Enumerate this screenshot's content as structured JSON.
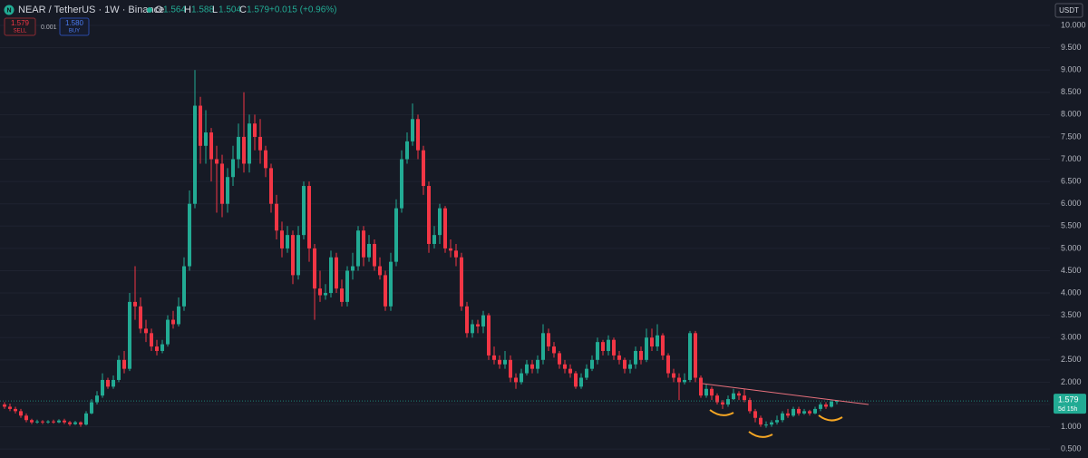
{
  "header": {
    "symbol": "NEAR / TetherUS · 1W · Binance",
    "open_label": "O",
    "high_label": "H",
    "low_label": "L",
    "close_label": "C",
    "change": "+0.015 (+0.96%)",
    "sell_price": "1.579",
    "sell": "SELL",
    "spread": "0.001",
    "buy_price": "1.580",
    "buy": "BUY",
    "currency": "USDT",
    "countdown": "5d 15h"
  },
  "chart_data": {
    "type": "candlestick",
    "up_color": "#22ab94",
    "down_color": "#f23645",
    "grid": true,
    "ylim": [
      0.3,
      10.57
    ],
    "yticks": [
      {
        "value": 0.5,
        "label": "0.500"
      },
      {
        "value": 1,
        "label": "1.000"
      },
      {
        "value": 1.5,
        "label": "1.500"
      },
      {
        "value": 2,
        "label": "2.000"
      },
      {
        "value": 2.5,
        "label": "2.500"
      },
      {
        "value": 3,
        "label": "3.000"
      },
      {
        "value": 3.5,
        "label": "3.500"
      },
      {
        "value": 4,
        "label": "4.000"
      },
      {
        "value": 4.5,
        "label": "4.500"
      },
      {
        "value": 5,
        "label": "5.000"
      },
      {
        "value": 5.5,
        "label": "5.500"
      },
      {
        "value": 6,
        "label": "6.000"
      },
      {
        "value": 6.5,
        "label": "6.500"
      },
      {
        "value": 7,
        "label": "7.000"
      },
      {
        "value": 7.5,
        "label": "7.500"
      },
      {
        "value": 8,
        "label": "8.000"
      },
      {
        "value": 8.5,
        "label": "8.500"
      },
      {
        "value": 9,
        "label": "9.000"
      },
      {
        "value": 9.5,
        "label": "9.500"
      },
      {
        "value": 10,
        "label": "10.000"
      }
    ],
    "open": [
      1.5,
      1.45,
      1.4,
      1.35,
      1.25,
      1.15,
      1.1,
      1.12,
      1.1,
      1.12,
      1.1,
      1.14,
      1.1,
      1.06,
      1.1,
      1.05,
      1.3,
      1.55,
      1.7,
      2.05,
      1.9,
      2.05,
      2.5,
      2.3,
      3.8,
      3.7,
      3.2,
      3.1,
      2.8,
      2.7,
      2.85,
      3.4,
      3.3,
      3.7,
      4.6,
      6.0,
      8.2,
      7.3,
      7.6,
      7.0,
      6.9,
      6.0,
      6.6,
      7.0,
      7.5,
      6.9,
      7.8,
      7.5,
      7.2,
      6.8,
      6.0,
      5.4,
      5.0,
      5.3,
      4.4,
      5.3,
      6.4,
      5.0,
      4.1,
      3.95,
      4.0,
      4.8,
      4.1,
      3.8,
      4.5,
      4.6,
      5.4,
      4.8,
      5.1,
      4.6,
      4.4,
      3.7,
      4.7,
      5.9,
      7.0,
      7.4,
      7.9,
      7.2,
      6.4,
      5.1,
      5.3,
      5.9,
      5.0,
      4.95,
      4.8,
      3.7,
      3.1,
      3.3,
      3.25,
      3.5,
      2.6,
      2.5,
      2.4,
      2.5,
      2.1,
      2.0,
      2.2,
      2.4,
      2.3,
      2.5,
      3.1,
      2.8,
      2.65,
      2.4,
      2.3,
      2.2,
      1.9,
      2.1,
      2.3,
      2.5,
      2.9,
      2.7,
      2.95,
      2.6,
      2.5,
      2.3,
      2.4,
      2.7,
      2.5,
      3.0,
      2.8,
      3.05,
      2.6,
      2.2,
      2.1,
      2.0,
      2.05,
      3.1,
      2.1,
      1.7,
      1.85,
      1.7,
      1.55,
      1.5,
      1.62,
      1.75,
      1.7,
      1.6,
      1.35,
      1.2,
      1.05,
      1.05,
      1.1,
      1.15,
      1.3,
      1.25,
      1.4,
      1.3,
      1.35,
      1.3,
      1.4,
      1.5,
      1.45,
      1.564
    ],
    "high": [
      1.55,
      1.52,
      1.45,
      1.4,
      1.3,
      1.18,
      1.16,
      1.15,
      1.15,
      1.16,
      1.17,
      1.18,
      1.13,
      1.13,
      1.12,
      1.35,
      1.62,
      1.8,
      2.2,
      2.1,
      2.15,
      2.6,
      2.7,
      4.0,
      4.6,
      3.9,
      3.4,
      3.2,
      2.95,
      2.95,
      3.5,
      3.6,
      3.9,
      4.8,
      6.3,
      9.0,
      8.4,
      8.1,
      7.7,
      7.3,
      7.1,
      6.8,
      7.3,
      7.8,
      8.5,
      8.0,
      8.0,
      7.9,
      7.3,
      6.9,
      6.2,
      5.6,
      5.5,
      5.4,
      5.5,
      6.5,
      6.5,
      5.1,
      4.5,
      4.2,
      4.95,
      4.9,
      4.3,
      4.6,
      4.9,
      5.5,
      5.5,
      5.3,
      5.2,
      4.8,
      4.5,
      4.9,
      6.1,
      7.2,
      7.6,
      8.25,
      8.0,
      7.3,
      6.5,
      5.5,
      6.0,
      5.95,
      5.2,
      5.1,
      4.9,
      3.8,
      3.4,
      3.4,
      3.6,
      3.55,
      2.8,
      2.6,
      2.7,
      2.6,
      2.2,
      2.3,
      2.5,
      2.5,
      2.6,
      3.3,
      3.2,
      2.9,
      2.7,
      2.5,
      2.4,
      2.25,
      2.2,
      2.4,
      2.6,
      3.0,
      2.95,
      3.05,
      3.0,
      2.7,
      2.55,
      2.5,
      2.8,
      2.8,
      3.2,
      3.2,
      3.3,
      3.1,
      2.65,
      2.3,
      2.2,
      2.2,
      3.15,
      3.15,
      2.15,
      1.95,
      1.9,
      1.75,
      1.6,
      1.7,
      1.85,
      1.8,
      1.85,
      1.65,
      1.4,
      1.25,
      1.12,
      1.15,
      1.25,
      1.35,
      1.4,
      1.45,
      1.45,
      1.4,
      1.38,
      1.45,
      1.55,
      1.55,
      1.6,
      1.588
    ],
    "low": [
      1.4,
      1.35,
      1.3,
      1.2,
      1.1,
      1.06,
      1.07,
      1.06,
      1.07,
      1.07,
      1.08,
      1.06,
      1.02,
      1.04,
      1.0,
      1.03,
      1.28,
      1.5,
      1.65,
      1.85,
      1.85,
      2.0,
      2.2,
      2.25,
      3.4,
      3.1,
      2.9,
      2.7,
      2.6,
      2.65,
      2.8,
      3.2,
      3.25,
      3.6,
      4.5,
      5.9,
      6.9,
      6.9,
      6.5,
      5.8,
      5.7,
      5.8,
      6.4,
      6.8,
      6.7,
      6.7,
      7.2,
      6.9,
      6.6,
      5.8,
      5.2,
      4.8,
      4.9,
      4.2,
      4.3,
      5.2,
      4.7,
      3.4,
      3.8,
      3.85,
      3.9,
      4.0,
      3.7,
      3.7,
      4.3,
      4.5,
      4.6,
      4.7,
      4.5,
      4.3,
      3.6,
      3.6,
      4.6,
      5.8,
      6.9,
      7.3,
      7.0,
      6.2,
      4.9,
      5.0,
      5.1,
      4.9,
      4.8,
      4.6,
      3.6,
      3.0,
      3.0,
      3.1,
      3.1,
      2.5,
      2.4,
      2.3,
      2.3,
      2.0,
      1.85,
      1.95,
      2.15,
      2.2,
      2.2,
      2.4,
      2.7,
      2.55,
      2.3,
      2.2,
      2.1,
      1.85,
      1.85,
      2.05,
      2.25,
      2.4,
      2.6,
      2.6,
      2.5,
      2.4,
      2.2,
      2.2,
      2.3,
      2.4,
      2.45,
      2.7,
      2.7,
      2.5,
      2.1,
      2.0,
      1.6,
      1.95,
      2.0,
      2.0,
      1.65,
      1.65,
      1.6,
      1.5,
      1.4,
      1.45,
      1.6,
      1.6,
      1.55,
      1.3,
      1.1,
      1.0,
      0.98,
      1.0,
      1.05,
      1.1,
      1.2,
      1.22,
      1.25,
      1.27,
      1.25,
      1.28,
      1.35,
      1.4,
      1.43,
      1.504
    ],
    "close": [
      1.45,
      1.4,
      1.35,
      1.25,
      1.15,
      1.1,
      1.12,
      1.1,
      1.12,
      1.1,
      1.14,
      1.1,
      1.06,
      1.1,
      1.05,
      1.3,
      1.55,
      1.7,
      2.05,
      1.9,
      2.05,
      2.5,
      2.3,
      3.8,
      3.7,
      3.2,
      3.1,
      2.8,
      2.7,
      2.85,
      3.4,
      3.3,
      3.7,
      4.6,
      6.0,
      8.2,
      7.3,
      7.6,
      7.0,
      6.9,
      6.0,
      6.6,
      7.0,
      7.5,
      6.9,
      7.8,
      7.5,
      7.2,
      6.8,
      6.0,
      5.4,
      5.0,
      5.3,
      4.4,
      5.3,
      6.4,
      5.0,
      4.1,
      3.95,
      4.0,
      4.8,
      4.1,
      3.8,
      4.5,
      4.6,
      5.4,
      4.8,
      5.1,
      4.6,
      4.4,
      3.7,
      4.7,
      5.9,
      7.0,
      7.4,
      7.9,
      7.2,
      6.4,
      5.1,
      5.3,
      5.9,
      5.0,
      4.95,
      4.8,
      3.7,
      3.1,
      3.3,
      3.25,
      3.5,
      2.6,
      2.5,
      2.4,
      2.5,
      2.1,
      2.0,
      2.2,
      2.4,
      2.3,
      2.5,
      3.1,
      2.8,
      2.65,
      2.4,
      2.3,
      2.2,
      1.9,
      2.1,
      2.3,
      2.5,
      2.9,
      2.7,
      2.95,
      2.6,
      2.5,
      2.3,
      2.4,
      2.7,
      2.5,
      3.0,
      2.8,
      3.05,
      2.6,
      2.2,
      2.1,
      2.0,
      2.05,
      3.1,
      2.1,
      1.7,
      1.85,
      1.7,
      1.55,
      1.5,
      1.62,
      1.75,
      1.7,
      1.6,
      1.35,
      1.2,
      1.05,
      1.05,
      1.1,
      1.15,
      1.3,
      1.25,
      1.4,
      1.3,
      1.35,
      1.3,
      1.4,
      1.5,
      1.45,
      1.564,
      1.579
    ]
  }
}
